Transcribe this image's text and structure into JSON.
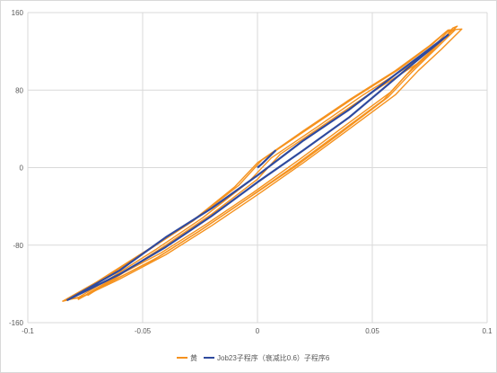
{
  "chart_data": {
    "type": "line",
    "xlim": [
      -0.1,
      0.1
    ],
    "ylim": [
      -160,
      160
    ],
    "x_ticks": [
      -0.1,
      -0.05,
      0,
      0.05,
      0.1
    ],
    "y_ticks": [
      -160,
      -80,
      0,
      80,
      160
    ],
    "x_tick_labels": [
      "-0.1",
      "-0.05",
      "0",
      "0.05",
      "0.1"
    ],
    "y_tick_labels": [
      "-160",
      "-80",
      "0",
      "80",
      "160"
    ],
    "grid": true,
    "legend_position": "bottom",
    "series": [
      {
        "name": "黄",
        "color": "#f5921e",
        "loops": [
          {
            "x": [
              -0.085,
              -0.07,
              -0.05,
              -0.03,
              -0.01,
              0.0,
              0.02,
              0.04,
              0.06,
              0.075,
              0.083,
              0.089,
              0.08,
              0.07,
              0.06,
              0.04,
              0.02,
              0.0,
              -0.02,
              -0.04,
              -0.06,
              -0.075,
              -0.085
            ],
            "y": [
              -138,
              -118,
              -88,
              -58,
              -20,
              5,
              38,
              70,
              100,
              126,
              142,
              143,
              122,
              100,
              75,
              40,
              5,
              -28,
              -60,
              -90,
              -115,
              -132,
              -138
            ]
          },
          {
            "x": [
              -0.082,
              -0.068,
              -0.048,
              -0.028,
              -0.008,
              0.002,
              0.022,
              0.042,
              0.062,
              0.076,
              0.082,
              0.086,
              0.077,
              0.067,
              0.057,
              0.037,
              0.017,
              -0.003,
              -0.023,
              -0.043,
              -0.063,
              -0.077,
              -0.082
            ],
            "y": [
              -136,
              -116,
              -86,
              -55,
              -18,
              8,
              40,
              72,
              102,
              127,
              140,
              142,
              121,
              98,
              73,
              37,
              2,
              -30,
              -62,
              -92,
              -117,
              -134,
              -136
            ]
          },
          {
            "x": [
              -0.078,
              -0.064,
              -0.044,
              -0.024,
              -0.004,
              0.006,
              0.026,
              0.046,
              0.066,
              0.078,
              0.083,
              0.084,
              0.075,
              0.065,
              0.055,
              0.035,
              0.015,
              -0.005,
              -0.025,
              -0.045,
              -0.065,
              -0.078,
              -0.078
            ],
            "y": [
              -134,
              -114,
              -84,
              -52,
              -15,
              10,
              42,
              75,
              105,
              128,
              141,
              140,
              118,
              96,
              70,
              35,
              0,
              -33,
              -65,
              -95,
              -119,
              -136,
              -134
            ]
          },
          {
            "x": [
              -0.074,
              -0.06,
              -0.04,
              -0.02,
              0.0,
              0.01,
              0.03,
              0.05,
              0.07,
              0.08,
              0.085,
              0.087,
              0.078,
              0.068,
              0.058,
              0.038,
              0.018,
              -0.002,
              -0.022,
              -0.042,
              -0.062,
              -0.074,
              -0.074
            ],
            "y": [
              -132,
              -111,
              -80,
              -48,
              -12,
              14,
              46,
              78,
              108,
              130,
              144,
              146,
              126,
              104,
              78,
              43,
              8,
              -26,
              -58,
              -88,
              -113,
              -130,
              -132
            ]
          }
        ]
      },
      {
        "name": "Job23子程序（衰减比0.6）子程序6",
        "color": "#2f4a9e",
        "loops": [
          {
            "x": [
              0.0,
              0.002,
              0.008
            ],
            "y": [
              0,
              4,
              18
            ]
          },
          {
            "x": [
              -0.083,
              -0.06,
              -0.04,
              -0.02,
              0.0,
              0.02,
              0.04,
              0.06,
              0.083,
              0.083,
              0.06,
              0.04,
              0.02,
              0.0,
              -0.02,
              -0.04,
              -0.06,
              -0.083
            ],
            "y": [
              -137,
              -106,
              -72,
              -42,
              -8,
              28,
              60,
              96,
              137,
              137,
              92,
              52,
              18,
              -15,
              -50,
              -82,
              -110,
              -137
            ]
          }
        ]
      }
    ]
  }
}
